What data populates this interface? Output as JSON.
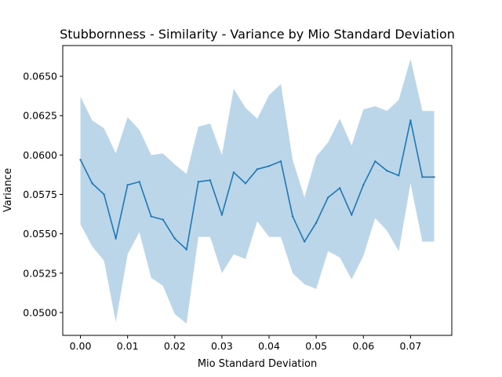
{
  "chart_data": {
    "type": "line",
    "title": "Stubbornness - Similarity - Variance by Mio Standard Deviation",
    "xlabel": "Mio Standard Deviation",
    "ylabel": "Variance",
    "xlim": [
      -0.00375,
      0.07875
    ],
    "ylim": [
      0.04855,
      0.06695
    ],
    "xticks": [
      0.0,
      0.01,
      0.02,
      0.03,
      0.04,
      0.05,
      0.06,
      0.07
    ],
    "xtick_labels": [
      "0.00",
      "0.01",
      "0.02",
      "0.03",
      "0.04",
      "0.05",
      "0.06",
      "0.07"
    ],
    "yticks": [
      0.05,
      0.0525,
      0.055,
      0.0575,
      0.06,
      0.0625,
      0.065
    ],
    "ytick_labels": [
      "0.0500",
      "0.0525",
      "0.0550",
      "0.0575",
      "0.0600",
      "0.0625",
      "0.0650"
    ],
    "grid": false,
    "series": [
      {
        "color": "#1f77b4",
        "band_color": "#1f77b4",
        "band_opacity": 0.3,
        "x": [
          0.0,
          0.0025,
          0.005,
          0.0075,
          0.01,
          0.0125,
          0.015,
          0.0175,
          0.02,
          0.0225,
          0.025,
          0.0275,
          0.03,
          0.0325,
          0.035,
          0.0375,
          0.04,
          0.0425,
          0.045,
          0.0475,
          0.05,
          0.0525,
          0.055,
          0.0575,
          0.06,
          0.0625,
          0.065,
          0.0675,
          0.07,
          0.0725,
          0.075
        ],
        "values": [
          0.0597,
          0.0582,
          0.0575,
          0.0547,
          0.0581,
          0.0583,
          0.0561,
          0.0559,
          0.0547,
          0.054,
          0.0583,
          0.0584,
          0.0562,
          0.0589,
          0.0582,
          0.0591,
          0.0593,
          0.0596,
          0.0561,
          0.0545,
          0.0557,
          0.0573,
          0.0579,
          0.0562,
          0.0581,
          0.0596,
          0.059,
          0.0587,
          0.0622,
          0.0586,
          0.0586
        ],
        "lower": [
          0.0556,
          0.0542,
          0.0533,
          0.0494,
          0.0537,
          0.0551,
          0.0522,
          0.0517,
          0.0499,
          0.0493,
          0.0548,
          0.0548,
          0.0525,
          0.0537,
          0.0534,
          0.0558,
          0.0548,
          0.0548,
          0.0525,
          0.0518,
          0.0515,
          0.0539,
          0.0535,
          0.0521,
          0.0536,
          0.056,
          0.0552,
          0.0539,
          0.0582,
          0.0545,
          0.0545
        ],
        "upper": [
          0.0637,
          0.0622,
          0.0617,
          0.0601,
          0.0624,
          0.0616,
          0.06,
          0.0601,
          0.0594,
          0.0588,
          0.0618,
          0.062,
          0.06,
          0.0642,
          0.063,
          0.0623,
          0.0638,
          0.0645,
          0.0597,
          0.0573,
          0.0599,
          0.0608,
          0.0623,
          0.0606,
          0.0629,
          0.0631,
          0.0628,
          0.0635,
          0.0661,
          0.0628,
          0.0628
        ]
      }
    ]
  }
}
